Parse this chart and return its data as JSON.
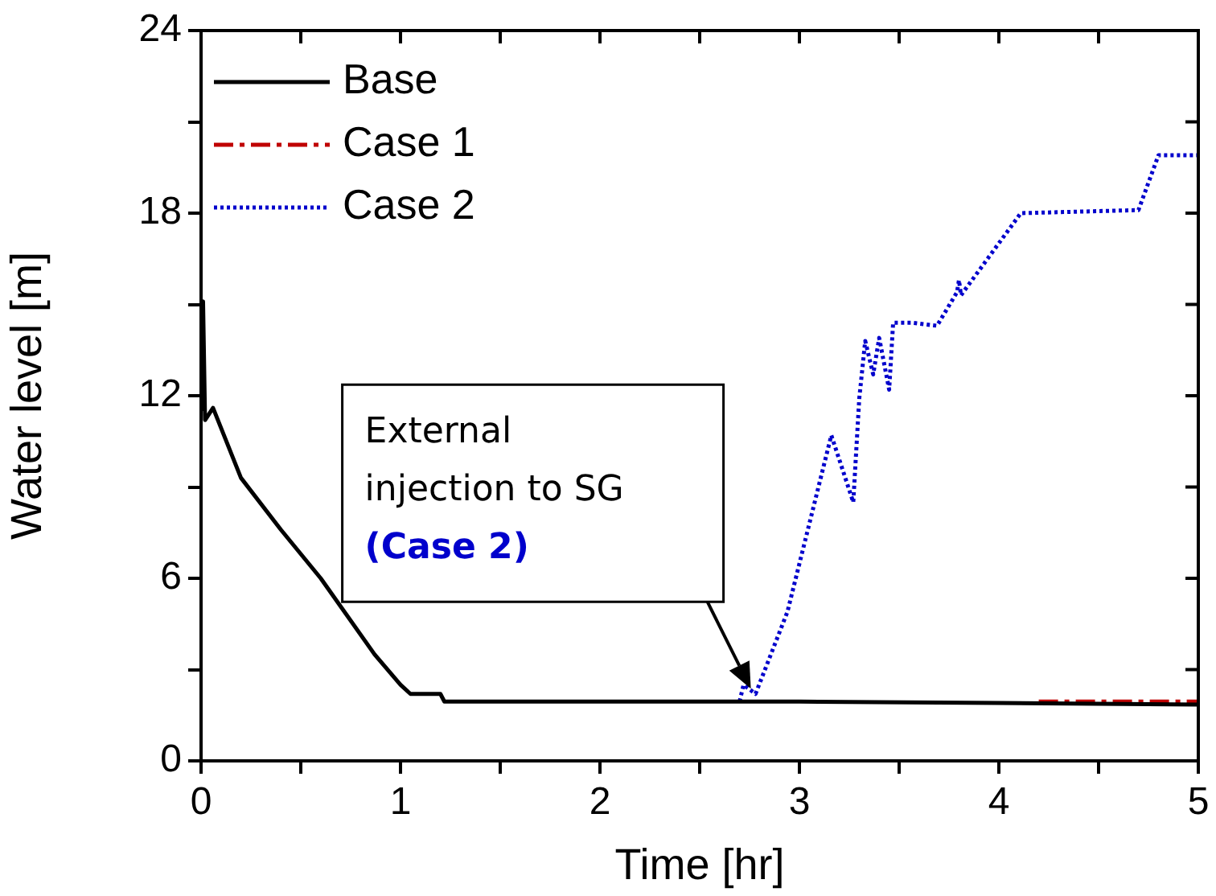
{
  "chart_data": {
    "type": "line",
    "xlabel": "Time [hr]",
    "ylabel": "Water level [m]",
    "xlim": [
      0,
      5
    ],
    "xticks": [
      0,
      {
        "value": 0.5,
        "label": null
      },
      1,
      {
        "value": 1.5,
        "label": null
      },
      2,
      {
        "value": 2.5,
        "label": null
      },
      3,
      {
        "value": 3.5,
        "label": null
      },
      4,
      {
        "value": 4.5,
        "label": null
      },
      5
    ],
    "ylim": [
      0,
      24
    ],
    "yticks": [
      0,
      {
        "value": 3,
        "label": null
      },
      6,
      {
        "value": 9,
        "label": null
      },
      12,
      {
        "value": 15,
        "label": null
      },
      18,
      {
        "value": 21,
        "label": null
      },
      24
    ],
    "grid": false,
    "legend": "top left",
    "marker": "none",
    "series": [
      {
        "name": "Base",
        "color": "#000000",
        "line_style": "solid",
        "x": [
          0,
          0.01,
          0.02,
          0.06,
          0.2,
          0.4,
          0.6,
          0.87,
          1.0,
          1.05,
          1.2,
          1.22,
          2,
          3,
          4,
          5
        ],
        "values": [
          11.5,
          15.1,
          11.2,
          11.6,
          9.3,
          7.6,
          6.0,
          3.5,
          2.5,
          2.2,
          2.2,
          1.95,
          1.95,
          1.95,
          1.9,
          1.85
        ]
      },
      {
        "name": "Case 1",
        "color": "#c00000",
        "line_style": "dashed",
        "x": [
          4.2,
          5
        ],
        "values": [
          1.95,
          1.95
        ]
      },
      {
        "name": "Case 2",
        "color": "#0000cc",
        "line_style": "dotted",
        "x": [
          2.7,
          2.72,
          2.78,
          2.94,
          3.16,
          3.27,
          3.3,
          3.33,
          3.37,
          3.4,
          3.45,
          3.47,
          3.56,
          3.69,
          3.79,
          3.8,
          3.81,
          4.11,
          4.7,
          4.8,
          5
        ],
        "values": [
          1.95,
          2.5,
          2.2,
          4.9,
          10.7,
          8.5,
          11.9,
          13.8,
          12.7,
          13.9,
          12.2,
          14.4,
          14.4,
          14.3,
          15.4,
          15.8,
          15.3,
          18.0,
          18.1,
          19.9,
          19.9
        ]
      }
    ],
    "annotations": [
      "External injection to SG",
      "(Case 2)"
    ]
  }
}
